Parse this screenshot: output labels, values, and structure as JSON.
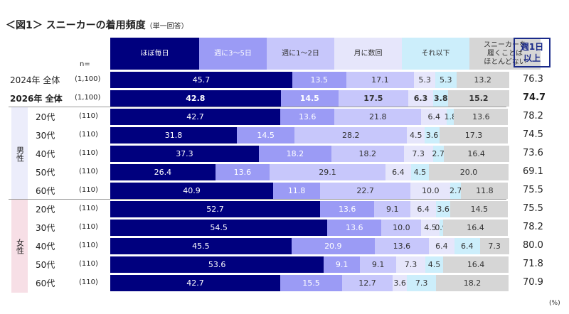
{
  "title": "＜図1＞ スニーカーの着用頻度",
  "title_note": "（単一回答）",
  "n_label": "n=",
  "total_header": "週1日\n以上",
  "total_header_lines": [
    "週1日",
    "以上"
  ],
  "percent_unit": "(%)",
  "groups": [
    {
      "label": "男性",
      "color": "#ecedfb"
    },
    {
      "label": "女性",
      "color": "#f7dfe6"
    }
  ],
  "chart_data": {
    "type": "bar",
    "orientation": "horizontal-stacked-100",
    "title": "＜図1＞ スニーカーの着用頻度（単一回答）",
    "categories_legend": [
      "ほぼ毎日",
      "週に3～5日",
      "週に1～2日",
      "月に数回",
      "それ以下",
      "スニーカーを履くことはほとんどない"
    ],
    "legend_lines": [
      [
        "ほぼ毎日"
      ],
      [
        "週に3～5日"
      ],
      [
        "週に1～2日"
      ],
      [
        "月に数回"
      ],
      [
        "それ以下"
      ],
      [
        "スニーカーを",
        "履くことは",
        "ほとんどない"
      ]
    ],
    "colors": [
      "#00007e",
      "#9b9bf5",
      "#c7c7fb",
      "#e6e6fb",
      "#cceefb",
      "#d6d6d6"
    ],
    "text_colors": [
      "#ffffff",
      "#ffffff",
      "#333333",
      "#333333",
      "#333333",
      "#333333"
    ],
    "xlim": [
      0,
      100
    ],
    "unit": "%",
    "rows": [
      {
        "label": "2024年 全体",
        "n": "(1,100)",
        "values": [
          45.7,
          13.5,
          17.1,
          5.3,
          5.3,
          13.2
        ],
        "total": "76.3",
        "bold": false,
        "group": null
      },
      {
        "label": "2026年 全体",
        "n": "(1,100)",
        "values": [
          42.8,
          14.5,
          17.5,
          6.3,
          3.8,
          15.2
        ],
        "total": "74.7",
        "bold": true,
        "group": null
      },
      {
        "label": "20代",
        "n": "(110)",
        "values": [
          42.7,
          13.6,
          21.8,
          6.4,
          1.8,
          13.6
        ],
        "total": "78.2",
        "bold": false,
        "group": 0
      },
      {
        "label": "30代",
        "n": "(110)",
        "values": [
          31.8,
          14.5,
          28.2,
          4.5,
          3.6,
          17.3
        ],
        "total": "74.5",
        "bold": false,
        "group": 0
      },
      {
        "label": "40代",
        "n": "(110)",
        "values": [
          37.3,
          18.2,
          18.2,
          7.3,
          2.7,
          16.4
        ],
        "total": "73.6",
        "bold": false,
        "group": 0
      },
      {
        "label": "50代",
        "n": "(110)",
        "values": [
          26.4,
          13.6,
          29.1,
          6.4,
          4.5,
          20.0
        ],
        "total": "69.1",
        "bold": false,
        "group": 0
      },
      {
        "label": "60代",
        "n": "(110)",
        "values": [
          40.9,
          11.8,
          22.7,
          10.0,
          2.7,
          11.8
        ],
        "total": "75.5",
        "bold": false,
        "group": 0
      },
      {
        "label": "20代",
        "n": "(110)",
        "values": [
          52.7,
          13.6,
          9.1,
          6.4,
          3.6,
          14.5
        ],
        "total": "75.5",
        "bold": false,
        "group": 1
      },
      {
        "label": "30代",
        "n": "(110)",
        "values": [
          54.5,
          13.6,
          10.0,
          4.5,
          0.9,
          16.4
        ],
        "total": "78.2",
        "bold": false,
        "group": 1
      },
      {
        "label": "40代",
        "n": "(110)",
        "values": [
          45.5,
          20.9,
          13.6,
          6.4,
          6.4,
          7.3
        ],
        "total": "80.0",
        "bold": false,
        "group": 1
      },
      {
        "label": "50代",
        "n": "(110)",
        "values": [
          53.6,
          9.1,
          9.1,
          7.3,
          4.5,
          16.4
        ],
        "total": "71.8",
        "bold": false,
        "group": 1
      },
      {
        "label": "60代",
        "n": "(110)",
        "values": [
          42.7,
          15.5,
          12.7,
          3.6,
          7.3,
          18.2
        ],
        "total": "70.9",
        "bold": false,
        "group": 1
      }
    ]
  }
}
